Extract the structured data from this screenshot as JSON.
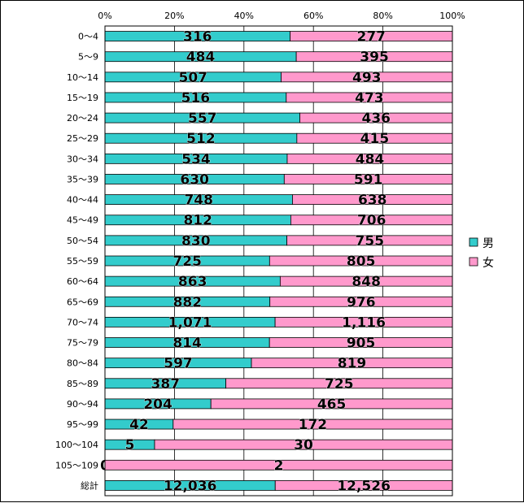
{
  "chart_data": {
    "type": "bar",
    "orientation": "horizontal",
    "stacked": "percent",
    "title": "",
    "xlabel": "",
    "ylabel": "",
    "xlim": [
      0,
      100
    ],
    "x_ticks": [
      "0%",
      "20%",
      "40%",
      "60%",
      "80%",
      "100%"
    ],
    "grid": true,
    "legend_position": "right",
    "categories": [
      "0〜4",
      "5〜9",
      "10〜14",
      "15〜19",
      "20〜24",
      "25〜29",
      "30〜34",
      "35〜39",
      "40〜44",
      "45〜49",
      "50〜54",
      "55〜59",
      "60〜64",
      "65〜69",
      "70〜74",
      "75〜79",
      "80〜84",
      "85〜89",
      "90〜94",
      "95〜99",
      "100〜104",
      "105〜109",
      "総計"
    ],
    "series": [
      {
        "name": "男",
        "color": "#33cccc",
        "values": [
          316,
          484,
          507,
          516,
          557,
          512,
          534,
          630,
          748,
          812,
          830,
          725,
          863,
          882,
          1071,
          814,
          597,
          387,
          204,
          42,
          5,
          0,
          12036
        ],
        "labels": [
          "316",
          "484",
          "507",
          "516",
          "557",
          "512",
          "534",
          "630",
          "748",
          "812",
          "830",
          "725",
          "863",
          "882",
          "1,071",
          "814",
          "597",
          "387",
          "204",
          "42",
          "5",
          "0",
          "12,036"
        ]
      },
      {
        "name": "女",
        "color": "#ff99cc",
        "values": [
          277,
          395,
          493,
          473,
          436,
          415,
          484,
          591,
          638,
          706,
          755,
          805,
          848,
          976,
          1116,
          905,
          819,
          725,
          465,
          172,
          30,
          2,
          12526
        ],
        "labels": [
          "277",
          "395",
          "493",
          "473",
          "436",
          "415",
          "484",
          "591",
          "638",
          "706",
          "755",
          "805",
          "848",
          "976",
          "1,116",
          "905",
          "819",
          "725",
          "465",
          "172",
          "30",
          "2",
          "12,526"
        ]
      }
    ]
  }
}
